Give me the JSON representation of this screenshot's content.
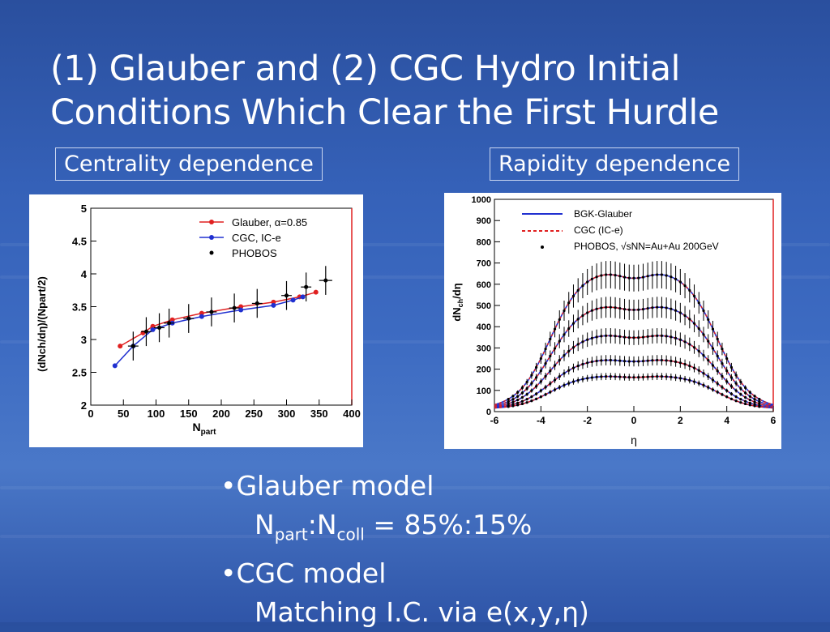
{
  "slide": {
    "title_line1": "(1) Glauber and (2) CGC Hydro Initial",
    "title_line2": "Conditions Which Clear the First Hurdle",
    "label_left": "Centrality dependence",
    "label_right": "Rapidity dependence",
    "bullets": {
      "b1_marker": "•",
      "b1": "Glauber model",
      "b1_sub_N1": "N",
      "b1_sub_s1": "part",
      "b1_sub_colon": ":N",
      "b1_sub_s2": "coll",
      "b1_sub_rest": " = 85%:15%",
      "b2_marker": "•",
      "b2": "CGC model",
      "b2_sub": "Matching I.C. via e(x,y,η)"
    }
  },
  "chart_data": [
    {
      "type": "line",
      "title": "",
      "xlabel_main": "N",
      "xlabel_sub": "part",
      "ylabel": "(dNch/dη)/(Npart/2)",
      "xlim": [
        0,
        400
      ],
      "ylim": [
        2,
        5
      ],
      "xticks": [
        "0",
        "50",
        "100",
        "150",
        "200",
        "250",
        "300",
        "350",
        "400"
      ],
      "yticks": [
        "2",
        "2.5",
        "3",
        "3.5",
        "4",
        "4.5",
        "5"
      ],
      "legend_position": "top-right",
      "series": [
        {
          "name": "Glauber, α=0.85",
          "color": "#e02020",
          "x": [
            45,
            80,
            95,
            125,
            170,
            230,
            280,
            320,
            345
          ],
          "y": [
            2.9,
            3.1,
            3.2,
            3.3,
            3.4,
            3.5,
            3.57,
            3.65,
            3.72
          ]
        },
        {
          "name": "CGC, IC-e",
          "color": "#2030d0",
          "x": [
            37,
            65,
            95,
            125,
            170,
            230,
            280,
            310,
            325
          ],
          "y": [
            2.6,
            2.9,
            3.15,
            3.25,
            3.35,
            3.45,
            3.52,
            3.6,
            3.65
          ]
        },
        {
          "name": "PHOBOS",
          "color": "#000000",
          "x": [
            65,
            85,
            105,
            120,
            150,
            185,
            220,
            255,
            300,
            330,
            360
          ],
          "y": [
            2.9,
            3.12,
            3.18,
            3.25,
            3.32,
            3.42,
            3.48,
            3.55,
            3.67,
            3.8,
            3.9
          ],
          "yerr": [
            0.22,
            0.22,
            0.22,
            0.22,
            0.22,
            0.22,
            0.22,
            0.22,
            0.22,
            0.22,
            0.22
          ],
          "xerr": [
            8,
            8,
            8,
            8,
            8,
            8,
            8,
            8,
            8,
            8,
            10
          ]
        }
      ]
    },
    {
      "type": "line",
      "title": "",
      "xlabel": "η",
      "ylabel_main": "dN",
      "ylabel_sub": "ch",
      "ylabel_end": "/dη",
      "xlim": [
        -6,
        6
      ],
      "ylim": [
        0,
        1000
      ],
      "xticks": [
        "-6",
        "-4",
        "-2",
        "0",
        "2",
        "4",
        "6"
      ],
      "yticks": [
        "0",
        "100",
        "200",
        "300",
        "400",
        "500",
        "600",
        "700",
        "800",
        "900",
        "1000"
      ],
      "legend_position": "top",
      "legend": [
        "BGK-Glauber",
        "CGC (IC-e)",
        "PHOBOS, √sNN=Au+Au 200GeV"
      ],
      "series": [
        {
          "name": "BGK-Glauber",
          "color": "#2030d0"
        },
        {
          "name": "CGC (IC-e)",
          "color": "#e02020"
        },
        {
          "name": "PHOBOS, √sNN=Au+Au 200GeV",
          "color": "#000000"
        }
      ],
      "centrality_curves": [
        {
          "center": 640,
          "peak": 660
        },
        {
          "center": 480,
          "peak": 500
        },
        {
          "center": 345,
          "peak": 360
        },
        {
          "center": 230,
          "peak": 240
        },
        {
          "center": 155,
          "peak": 160
        }
      ]
    }
  ]
}
